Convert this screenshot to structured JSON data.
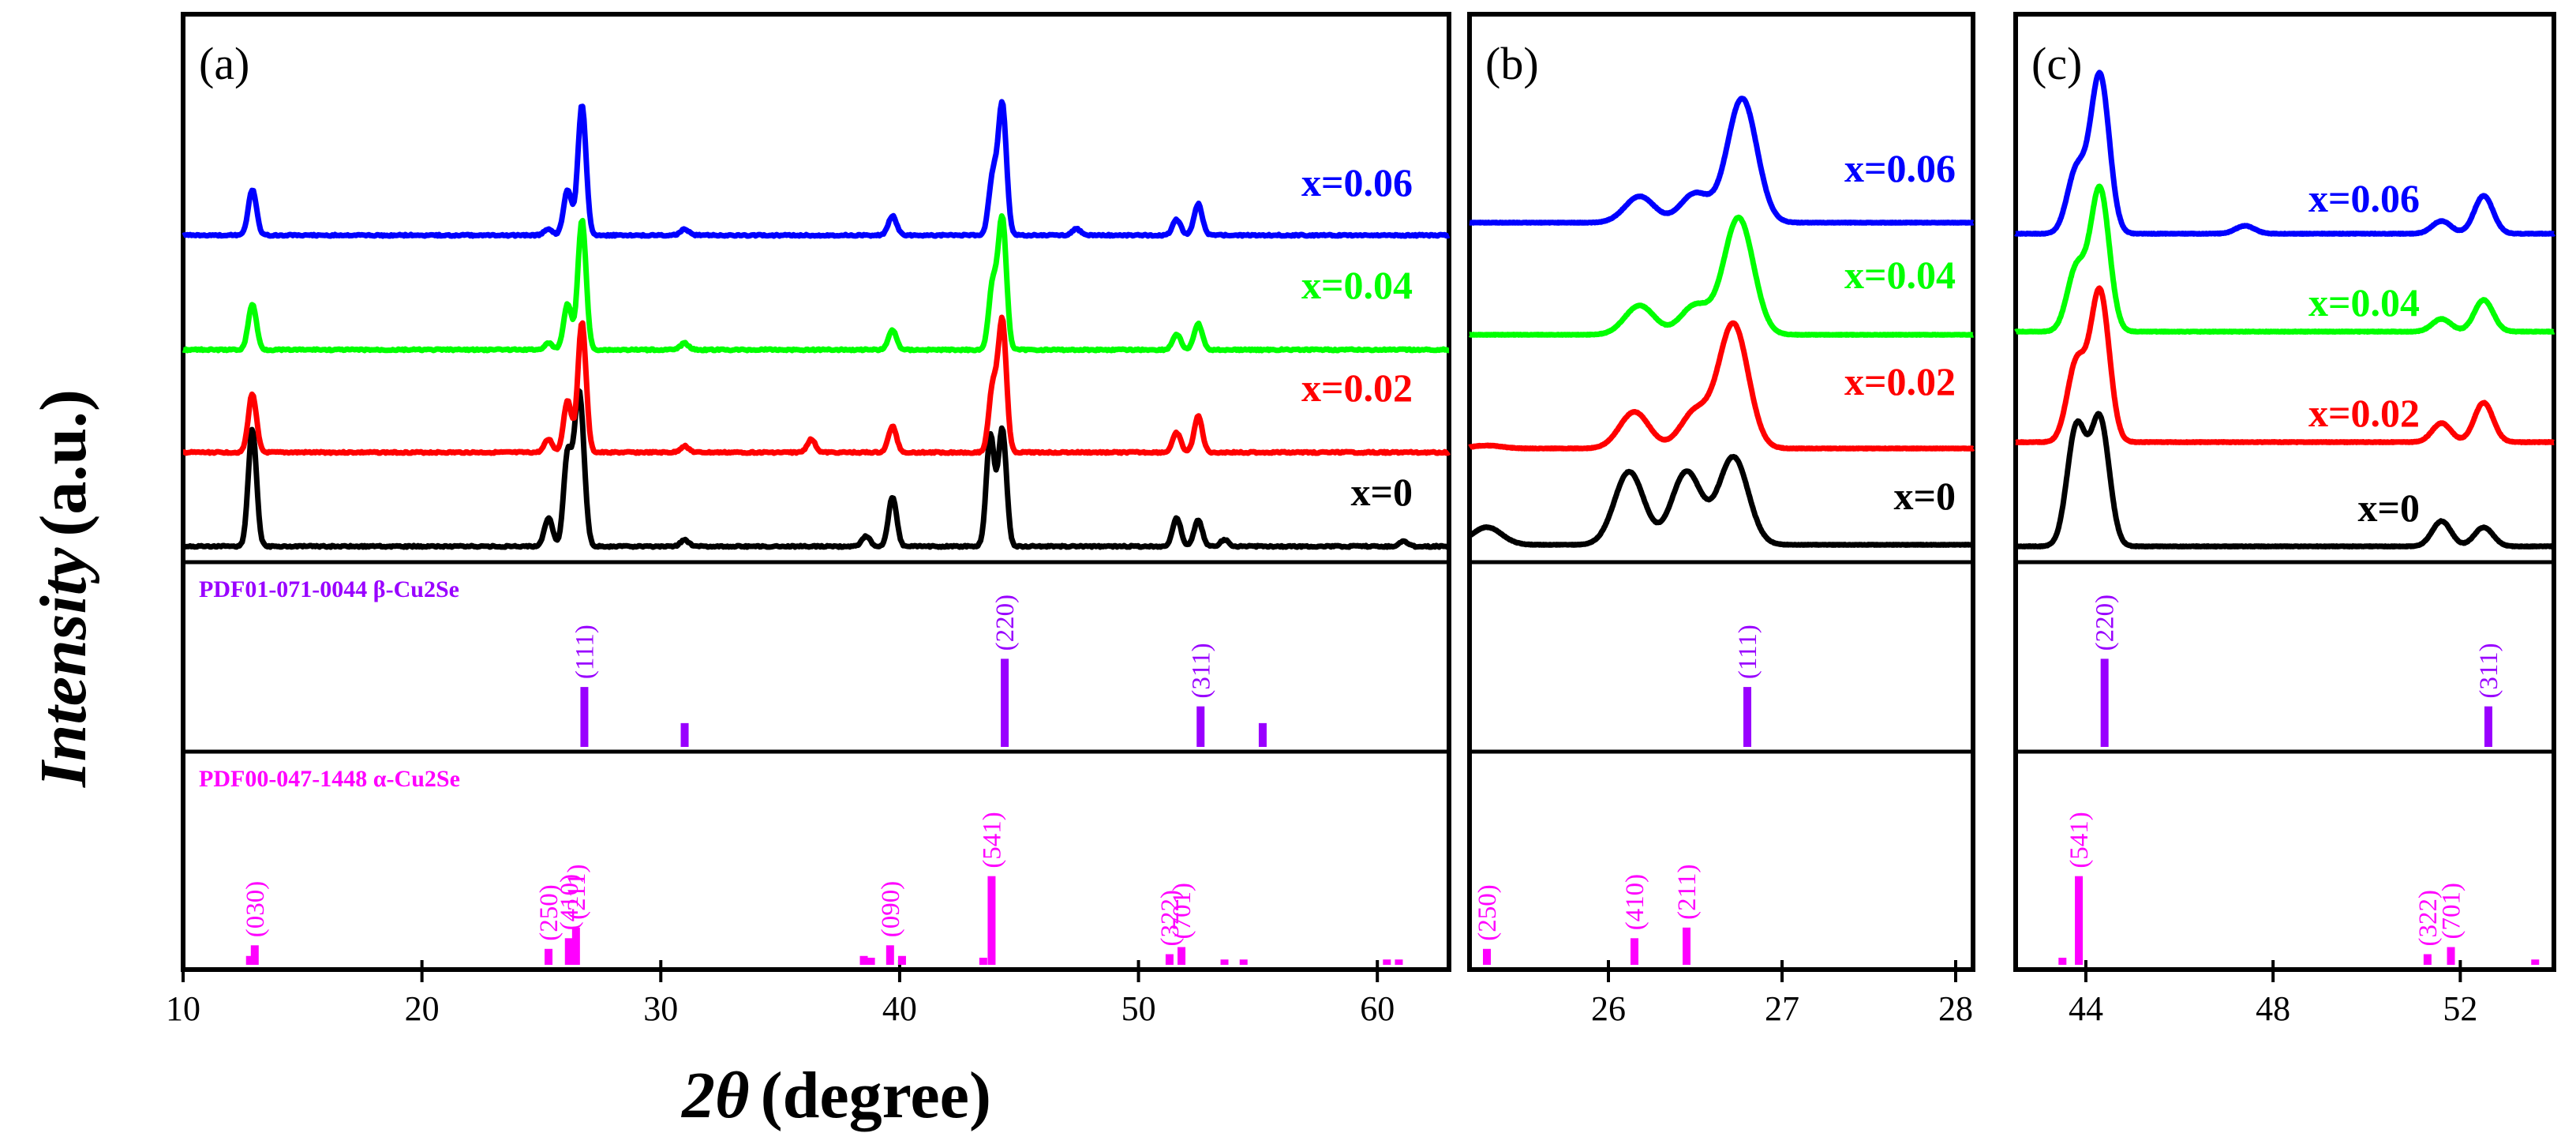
{
  "figure": {
    "ylabel_italic": "Intensity",
    "ylabel_unit": "(a.u.)",
    "xlabel_symbol": "2θ",
    "xlabel_unit": "(degree)"
  },
  "colors": {
    "x=0": "#000000",
    "x=0.02": "#ff0000",
    "x=0.04": "#00ff00",
    "x=0.06": "#0000ff",
    "beta": "#9900ff",
    "alpha": "#ff00ff"
  },
  "chart_data": [
    {
      "type": "line",
      "panel_label": "(a)",
      "x_range": [
        10,
        63
      ],
      "x_ticks": [
        10,
        20,
        30,
        40,
        50,
        60
      ],
      "series_labels": [
        "x=0.06",
        "x=0.04",
        "x=0.02",
        "x=0"
      ],
      "series": [
        {
          "name": "x=0",
          "peaks": [
            [
              12.9,
              0.9
            ],
            [
              25.3,
              0.22
            ],
            [
              26.1,
              0.7
            ],
            [
              26.5,
              0.8
            ],
            [
              26.7,
              0.6
            ],
            [
              31.0,
              0.05
            ],
            [
              38.6,
              0.08
            ],
            [
              39.7,
              0.38
            ],
            [
              43.8,
              0.85
            ],
            [
              44.3,
              0.9
            ],
            [
              51.6,
              0.22
            ],
            [
              52.5,
              0.2
            ],
            [
              53.6,
              0.05
            ],
            [
              61.1,
              0.04
            ]
          ]
        },
        {
          "name": "x=0.02",
          "peaks": [
            [
              12.9,
              0.45
            ],
            [
              25.3,
              0.1
            ],
            [
              26.1,
              0.4
            ],
            [
              26.7,
              1.0
            ],
            [
              31.0,
              0.05
            ],
            [
              36.3,
              0.1
            ],
            [
              39.7,
              0.2
            ],
            [
              43.9,
              0.5
            ],
            [
              44.3,
              1.0
            ],
            [
              51.6,
              0.15
            ],
            [
              52.5,
              0.28
            ]
          ]
        },
        {
          "name": "x=0.04",
          "peaks": [
            [
              12.9,
              0.35
            ],
            [
              25.3,
              0.05
            ],
            [
              26.1,
              0.35
            ],
            [
              26.7,
              1.0
            ],
            [
              31.0,
              0.05
            ],
            [
              39.7,
              0.15
            ],
            [
              43.9,
              0.5
            ],
            [
              44.3,
              1.0
            ],
            [
              51.6,
              0.12
            ],
            [
              52.5,
              0.2
            ]
          ]
        },
        {
          "name": "x=0.06",
          "peaks": [
            [
              12.9,
              0.35
            ],
            [
              25.3,
              0.05
            ],
            [
              26.1,
              0.35
            ],
            [
              26.7,
              1.0
            ],
            [
              31.0,
              0.05
            ],
            [
              39.7,
              0.15
            ],
            [
              43.9,
              0.45
            ],
            [
              44.3,
              1.0
            ],
            [
              47.4,
              0.05
            ],
            [
              51.6,
              0.12
            ],
            [
              52.5,
              0.24
            ]
          ]
        }
      ]
    },
    {
      "type": "line",
      "panel_label": "(b)",
      "x_range": [
        25.2,
        28.1
      ],
      "x_ticks": [
        26,
        27,
        28
      ],
      "series_labels": [
        "x=0.06",
        "x=0.04",
        "x=0.02",
        "x=0"
      ],
      "series": [
        {
          "name": "x=0",
          "peaks": [
            [
              25.3,
              0.12
            ],
            [
              26.12,
              0.5
            ],
            [
              26.45,
              0.5
            ],
            [
              26.72,
              0.6
            ]
          ]
        },
        {
          "name": "x=0.02",
          "peaks": [
            [
              25.3,
              0.02
            ],
            [
              26.15,
              0.25
            ],
            [
              26.5,
              0.25
            ],
            [
              26.72,
              0.85
            ]
          ]
        },
        {
          "name": "x=0.04",
          "peaks": [
            [
              26.18,
              0.2
            ],
            [
              26.5,
              0.2
            ],
            [
              26.75,
              0.8
            ]
          ]
        },
        {
          "name": "x=0.06",
          "peaks": [
            [
              26.18,
              0.18
            ],
            [
              26.5,
              0.2
            ],
            [
              26.77,
              0.85
            ]
          ]
        }
      ]
    },
    {
      "type": "line",
      "panel_label": "(c)",
      "x_range": [
        42.5,
        54.0
      ],
      "x_ticks": [
        44,
        48,
        52
      ],
      "series_labels": [
        "x=0.06",
        "x=0.04",
        "x=0.02",
        "x=0"
      ],
      "series": [
        {
          "name": "x=0",
          "peaks": [
            [
              43.8,
              0.75
            ],
            [
              44.3,
              0.8
            ],
            [
              51.6,
              0.16
            ],
            [
              52.5,
              0.12
            ]
          ]
        },
        {
          "name": "x=0.02",
          "peaks": [
            [
              43.8,
              0.5
            ],
            [
              44.3,
              0.95
            ],
            [
              51.6,
              0.12
            ],
            [
              52.5,
              0.25
            ]
          ]
        },
        {
          "name": "x=0.04",
          "peaks": [
            [
              43.8,
              0.4
            ],
            [
              44.3,
              0.9
            ],
            [
              51.6,
              0.08
            ],
            [
              52.5,
              0.2
            ]
          ]
        },
        {
          "name": "x=0.06",
          "peaks": [
            [
              43.8,
              0.4
            ],
            [
              44.3,
              1.0
            ],
            [
              47.4,
              0.05
            ],
            [
              51.6,
              0.08
            ],
            [
              52.5,
              0.24
            ]
          ]
        }
      ]
    }
  ],
  "references": {
    "beta": {
      "label": "PDF01-071-0044 β-Cu2Se",
      "sticks": [
        {
          "x": 26.8,
          "h": 0.68,
          "hkl": "(111)"
        },
        {
          "x": 31.0,
          "h": 0.27
        },
        {
          "x": 44.4,
          "h": 1.0,
          "hkl": "(220)"
        },
        {
          "x": 52.6,
          "h": 0.46,
          "hkl": "(311)"
        },
        {
          "x": 55.2,
          "h": 0.27
        }
      ]
    },
    "alpha": {
      "label": "PDF00-047-1448 α-Cu2Se",
      "sticks": [
        {
          "x": 12.8,
          "h": 0.1
        },
        {
          "x": 13.0,
          "h": 0.22,
          "hkl": "(030)"
        },
        {
          "x": 25.3,
          "h": 0.18,
          "hkl": "(250)"
        },
        {
          "x": 26.15,
          "h": 0.3,
          "hkl": "(410)"
        },
        {
          "x": 26.45,
          "h": 0.42,
          "hkl": "(211)"
        },
        {
          "x": 38.5,
          "h": 0.1
        },
        {
          "x": 38.8,
          "h": 0.08
        },
        {
          "x": 39.6,
          "h": 0.22,
          "hkl": "(090)"
        },
        {
          "x": 40.1,
          "h": 0.1
        },
        {
          "x": 43.5,
          "h": 0.08
        },
        {
          "x": 43.85,
          "h": 1.0,
          "hkl": "(541)"
        },
        {
          "x": 51.3,
          "h": 0.12,
          "hkl": "(322)"
        },
        {
          "x": 51.8,
          "h": 0.2,
          "hkl": "(701)"
        },
        {
          "x": 53.6,
          "h": 0.06
        },
        {
          "x": 54.4,
          "h": 0.06
        },
        {
          "x": 60.4,
          "h": 0.06
        },
        {
          "x": 60.9,
          "h": 0.06
        }
      ]
    }
  }
}
